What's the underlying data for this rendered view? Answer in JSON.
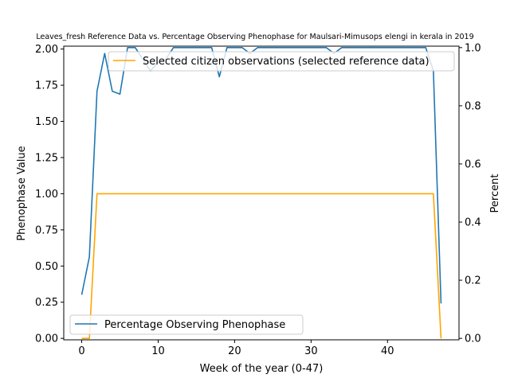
{
  "chart_data": {
    "type": "line",
    "title": "Leaves_fresh Reference Data vs. Percentage Observing Phenophase for Maulsari-Mimusops elengi in kerala in 2019",
    "xlabel": "Week of the year (0-47)",
    "ylabel_left": "Phenophase Value",
    "ylabel_right": "Percent",
    "xlim": [
      -2.35,
      49.35
    ],
    "ylim_left": [
      -0.01,
      2.02
    ],
    "ylim_right": [
      -0.005,
      1.005
    ],
    "xticks": [
      "0",
      "10",
      "20",
      "30",
      "40"
    ],
    "yticks_left": [
      "0.00",
      "0.25",
      "0.50",
      "0.75",
      "1.00",
      "1.25",
      "1.50",
      "1.75",
      "2.00"
    ],
    "yticks_right": [
      "0.0",
      "0.2",
      "0.4",
      "0.6",
      "0.8",
      "1.0"
    ],
    "grid": false,
    "series": [
      {
        "name": "Selected citizen observations (selected reference data)",
        "axis": "left",
        "color": "#ffa500",
        "x": [
          0,
          1,
          2,
          3,
          4,
          5,
          6,
          7,
          8,
          9,
          10,
          11,
          12,
          13,
          14,
          15,
          16,
          17,
          18,
          19,
          20,
          21,
          22,
          23,
          24,
          25,
          26,
          27,
          28,
          29,
          30,
          31,
          32,
          33,
          34,
          35,
          36,
          37,
          38,
          39,
          40,
          41,
          42,
          43,
          44,
          45,
          46,
          47
        ],
        "values": [
          0,
          0,
          1,
          1,
          1,
          1,
          1,
          1,
          1,
          1,
          1,
          1,
          1,
          1,
          1,
          1,
          1,
          1,
          1,
          1,
          1,
          1,
          1,
          1,
          1,
          1,
          1,
          1,
          1,
          1,
          1,
          1,
          1,
          1,
          1,
          1,
          1,
          1,
          1,
          1,
          1,
          1,
          1,
          1,
          1,
          1,
          1,
          0
        ],
        "legend_position": "upper right"
      },
      {
        "name": "Percentage Observing Phenophase",
        "axis": "right",
        "color": "#1f77b4",
        "x": [
          0,
          1,
          2,
          3,
          4,
          5,
          6,
          7,
          8,
          9,
          10,
          11,
          12,
          13,
          14,
          15,
          16,
          17,
          18,
          19,
          20,
          21,
          22,
          23,
          24,
          25,
          26,
          27,
          28,
          29,
          30,
          31,
          32,
          33,
          34,
          35,
          36,
          37,
          38,
          39,
          40,
          41,
          42,
          43,
          44,
          45,
          46,
          47
        ],
        "values": [
          0.15,
          0.28,
          0.85,
          0.98,
          0.85,
          0.84,
          1.0,
          1.0,
          0.96,
          0.92,
          0.95,
          0.96,
          1.0,
          1.0,
          1.0,
          1.0,
          1.0,
          1.0,
          0.9,
          1.0,
          1.0,
          1.0,
          0.98,
          1.0,
          1.0,
          1.0,
          1.0,
          1.0,
          1.0,
          1.0,
          1.0,
          1.0,
          1.0,
          0.98,
          1.0,
          1.0,
          1.0,
          1.0,
          1.0,
          1.0,
          1.0,
          1.0,
          1.0,
          1.0,
          1.0,
          1.0,
          0.92,
          0.12
        ],
        "legend_position": "lower left"
      }
    ]
  }
}
